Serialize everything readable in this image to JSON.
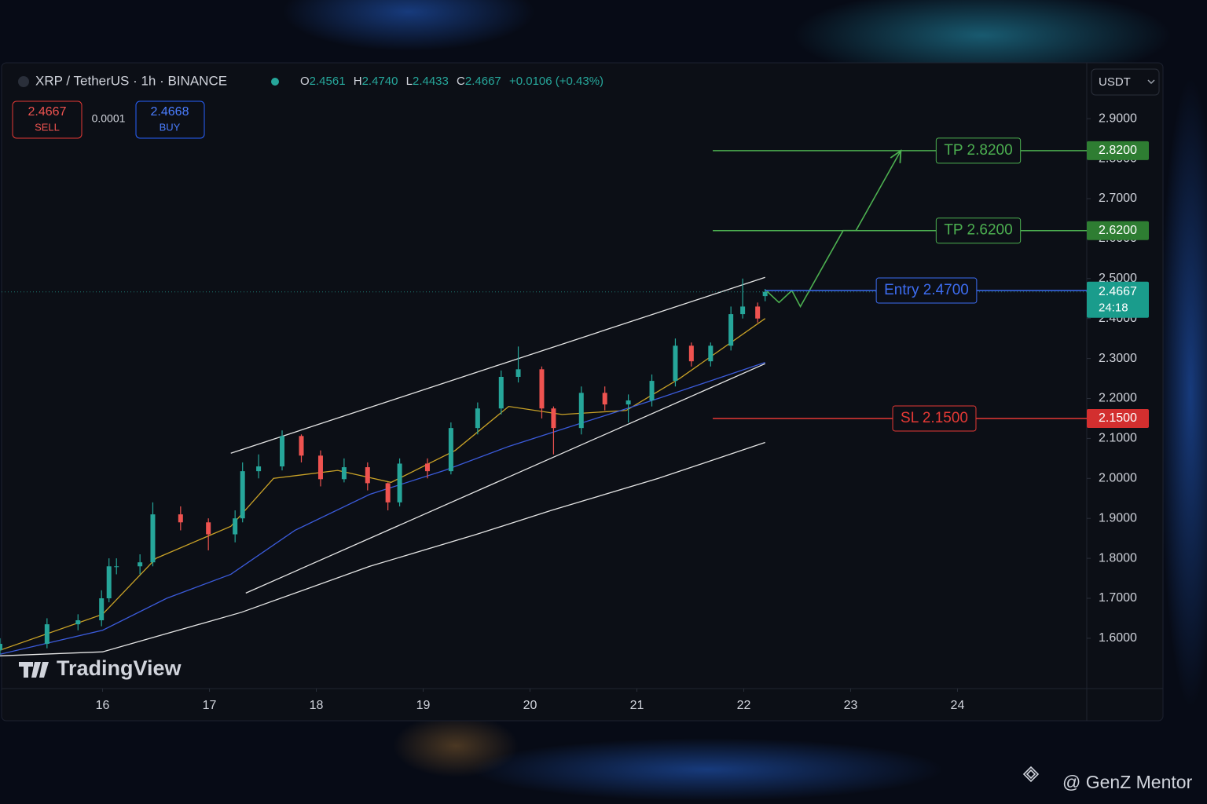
{
  "chart_data": {
    "type": "candlestick",
    "header": {
      "symbol": "XRP / TetherUS · 1h · BINANCE",
      "open_label": "O",
      "open": "2.4561",
      "high_label": "H",
      "high": "2.4740",
      "low_label": "L",
      "low": "2.4433",
      "close_label": "C",
      "close": "2.4667",
      "change": "+0.0106 (+0.43%)"
    },
    "trade": {
      "sell_price": "2.4667",
      "sell_label": "SELL",
      "spread": "0.0001",
      "buy_price": "2.4668",
      "buy_label": "BUY"
    },
    "currency": "USDT",
    "branding": "TradingView",
    "watermark": "@ GenZ Mentor",
    "x": [
      15.04,
      15.48,
      15.77,
      15.99,
      16.06,
      16.13,
      16.35,
      16.47,
      16.73,
      16.99,
      17.24,
      17.31,
      17.46,
      17.68,
      17.86,
      18.04,
      18.26,
      18.48,
      18.67,
      18.78,
      19.04,
      19.26,
      19.51,
      19.73,
      19.89,
      20.11,
      20.22,
      20.48,
      20.7,
      20.92,
      21.14,
      21.36,
      21.51,
      21.69,
      21.88,
      21.99,
      22.13,
      22.2
    ],
    "open": [
      1.57,
      1.586,
      1.635,
      1.645,
      1.7,
      1.78,
      1.78,
      1.79,
      1.91,
      1.89,
      1.86,
      1.9,
      2.018,
      2.03,
      2.106,
      2.057,
      1.998,
      2.028,
      1.988,
      1.94,
      2.037,
      2.018,
      2.126,
      2.175,
      2.254,
      2.273,
      2.175,
      2.126,
      2.214,
      2.185,
      2.195,
      2.244,
      2.332,
      2.293,
      2.332,
      2.411,
      2.43,
      2.4561
    ],
    "high": [
      1.6,
      1.65,
      1.66,
      1.72,
      1.8,
      1.8,
      1.81,
      1.94,
      1.93,
      1.9,
      1.92,
      2.04,
      2.06,
      2.12,
      2.11,
      2.07,
      2.05,
      2.04,
      1.99,
      2.05,
      2.05,
      2.14,
      2.19,
      2.27,
      2.33,
      2.28,
      2.18,
      2.23,
      2.23,
      2.21,
      2.26,
      2.35,
      2.34,
      2.34,
      2.43,
      2.5,
      2.44,
      2.474
    ],
    "low": [
      1.56,
      1.575,
      1.62,
      1.63,
      1.69,
      1.76,
      1.76,
      1.78,
      1.87,
      1.82,
      1.84,
      1.89,
      2.0,
      2.02,
      2.04,
      1.98,
      1.99,
      1.97,
      1.92,
      1.93,
      2.0,
      2.01,
      2.11,
      2.16,
      2.24,
      2.15,
      2.06,
      2.11,
      2.17,
      2.14,
      2.18,
      2.23,
      2.28,
      2.28,
      2.32,
      2.4,
      2.39,
      2.4433
    ],
    "close": [
      1.586,
      1.635,
      1.645,
      1.7,
      1.78,
      1.78,
      1.79,
      1.91,
      1.89,
      1.86,
      1.9,
      2.018,
      2.03,
      2.106,
      2.057,
      1.998,
      2.028,
      1.988,
      1.94,
      2.037,
      2.018,
      2.126,
      2.175,
      2.254,
      2.273,
      2.175,
      2.126,
      2.214,
      2.185,
      2.195,
      2.244,
      2.332,
      2.293,
      2.332,
      2.411,
      2.43,
      2.4,
      2.4667
    ],
    "up_color": "#26a69a",
    "down_color": "#ef5350",
    "lines": [
      {
        "color": "#c9a227",
        "x": [
          15.04,
          16,
          16.5,
          17.2,
          17.6,
          18.2,
          18.7,
          19.3,
          19.8,
          20.3,
          20.9,
          21.4,
          22.2
        ],
        "y": [
          1.57,
          1.66,
          1.8,
          1.88,
          2.0,
          2.02,
          1.99,
          2.07,
          2.18,
          2.16,
          2.17,
          2.25,
          2.4
        ]
      },
      {
        "color": "#3b5bdb",
        "x": [
          15.04,
          16,
          16.6,
          17.2,
          17.8,
          18.5,
          19.2,
          19.8,
          20.5,
          21.2,
          22.2
        ],
        "y": [
          1.56,
          1.62,
          1.7,
          1.76,
          1.87,
          1.96,
          2.02,
          2.08,
          2.14,
          2.2,
          2.29
        ]
      },
      {
        "color": "#e6e6e6",
        "x": [
          15.04,
          16,
          17.3,
          18.5,
          19.5,
          20.2,
          21.2,
          22.2
        ],
        "y": [
          1.556,
          1.566,
          1.665,
          1.78,
          1.86,
          1.92,
          2.0,
          2.09
        ]
      },
      {
        "color": "#e6e6e6",
        "x": [
          17.2,
          22.2
        ],
        "y": [
          2.063,
          2.503
        ]
      },
      {
        "color": "#e6e6e6",
        "x": [
          17.34,
          22.2
        ],
        "y": [
          1.713,
          2.287
        ]
      }
    ],
    "projection": {
      "color": "#4caf50",
      "x": [
        22.21,
        22.33,
        22.45,
        22.53,
        22.93,
        23.05,
        23.47
      ],
      "y": [
        2.47,
        2.44,
        2.47,
        2.43,
        2.62,
        2.62,
        2.82
      ]
    },
    "levels": [
      {
        "label": "TP 2.8200",
        "value": 2.82,
        "axis_label": "2.8200",
        "color": "#4caf50",
        "x_start": 21.71
      },
      {
        "label": "TP 2.6200",
        "value": 2.62,
        "axis_label": "2.6200",
        "color": "#4caf50",
        "x_start": 21.71
      },
      {
        "label": "Entry 2.4700",
        "value": 2.47,
        "color": "#3d6df2",
        "x_start": 22.2
      },
      {
        "label": "SL 2.1500",
        "value": 2.15,
        "axis_label": "2.1500",
        "color": "#e53935",
        "x_start": 21.71
      }
    ],
    "current_price": 2.4667,
    "countdown": "24:18",
    "xlim": [
      15.04,
      25.21
    ],
    "xticks": [
      16,
      17,
      18,
      19,
      20,
      21,
      22,
      23,
      24
    ],
    "ylim": [
      1.478,
      3.03
    ],
    "yticks": [
      {
        "value": 1.6,
        "label": "1.6000"
      },
      {
        "value": 1.7,
        "label": "1.7000"
      },
      {
        "value": 1.8,
        "label": "1.8000"
      },
      {
        "value": 1.9,
        "label": "1.9000"
      },
      {
        "value": 2.0,
        "label": "2.0000"
      },
      {
        "value": 2.1,
        "label": "2.1000"
      },
      {
        "value": 2.2,
        "label": "2.2000"
      },
      {
        "value": 2.3,
        "label": "2.3000"
      },
      {
        "value": 2.4,
        "label": "2.4000"
      },
      {
        "value": 2.5,
        "label": "2.5000"
      },
      {
        "value": 2.6,
        "label": "2.6000"
      },
      {
        "value": 2.7,
        "label": "2.7000"
      },
      {
        "value": 2.8,
        "label": "2.8000"
      },
      {
        "value": 2.9,
        "label": "2.9000"
      }
    ]
  }
}
